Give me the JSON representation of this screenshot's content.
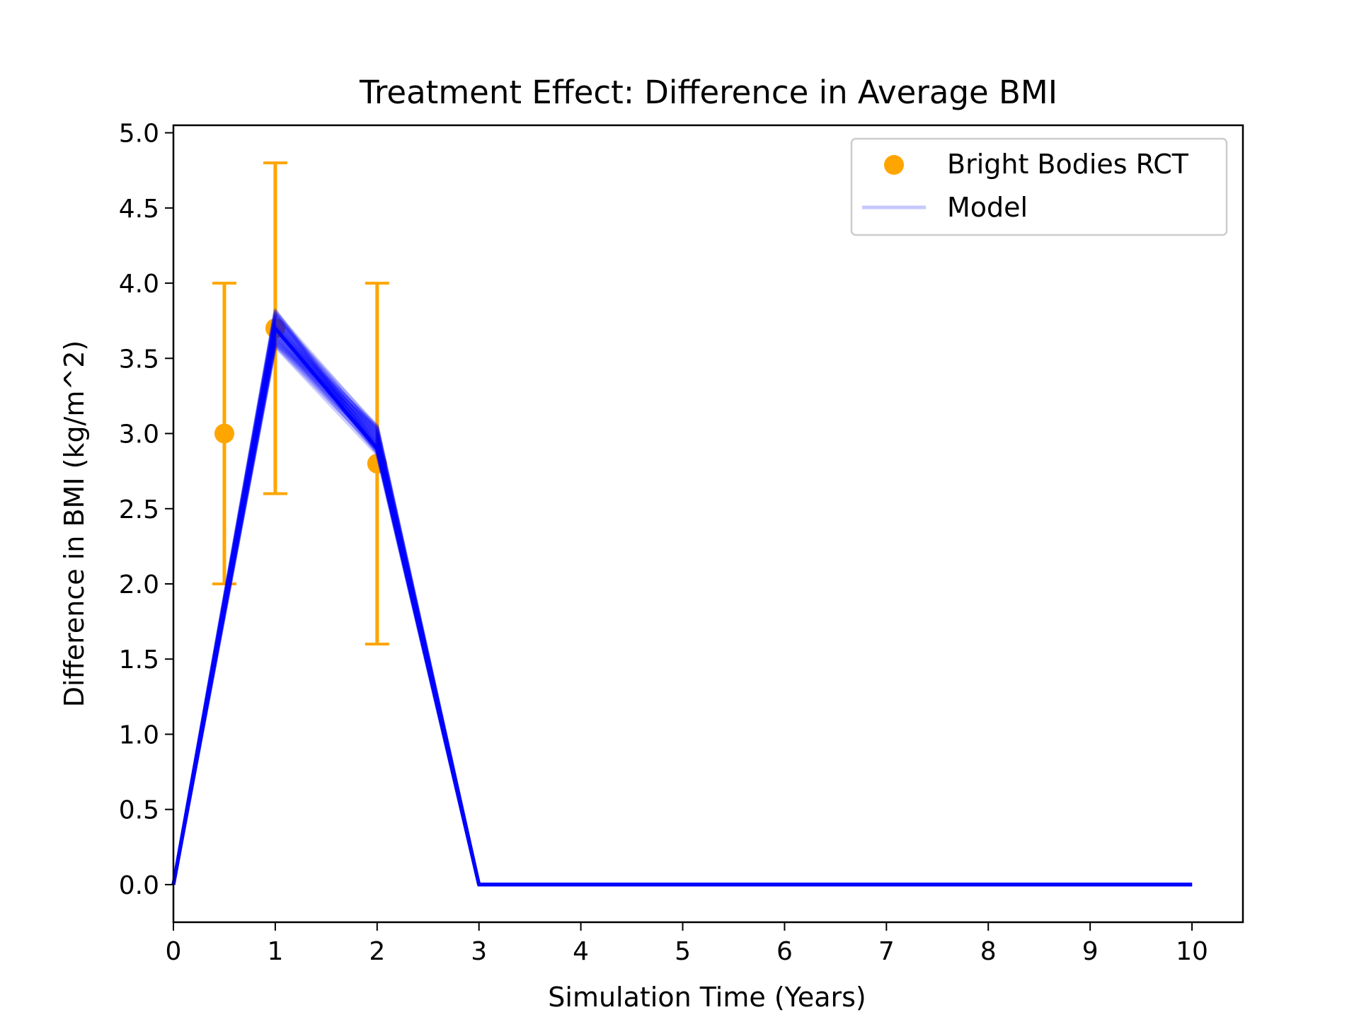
{
  "chart_data": {
    "type": "line",
    "title": "Treatment Effect: Difference in Average BMI",
    "xlabel": "Simulation Time (Years)",
    "ylabel": "Difference in BMI (kg/m^2)",
    "xlim": [
      0,
      10.5
    ],
    "ylim": [
      -0.25,
      5.05
    ],
    "x_ticks": [
      "0",
      "1",
      "2",
      "3",
      "4",
      "5",
      "6",
      "7",
      "8",
      "9",
      "10"
    ],
    "y_ticks": [
      "0.0",
      "0.5",
      "1.0",
      "1.5",
      "2.0",
      "2.5",
      "3.0",
      "3.5",
      "4.0",
      "4.5",
      "5.0"
    ],
    "grid": false,
    "legend_position": "top-right",
    "legend": [
      {
        "label": "Bright Bodies RCT",
        "marker": "dot",
        "color": "#ffa500"
      },
      {
        "label": "Model",
        "marker": "line",
        "color": "#0000ff"
      }
    ],
    "observed": {
      "name": "Bright Bodies RCT",
      "color": "#ffa500",
      "points": [
        {
          "x": 0.5,
          "y": 3.0,
          "ylow": 2.0,
          "yhigh": 4.0
        },
        {
          "x": 1.0,
          "y": 3.7,
          "ylow": 2.6,
          "yhigh": 4.8
        },
        {
          "x": 2.0,
          "y": 2.8,
          "ylow": 1.6,
          "yhigh": 4.0
        }
      ]
    },
    "model": {
      "name": "Model",
      "color": "#0000ff",
      "x": [
        0,
        1,
        2,
        3,
        4,
        5,
        6,
        7,
        8,
        9,
        10
      ],
      "y": [
        0.0,
        3.7,
        2.9,
        0.0,
        0.0,
        0.0,
        0.0,
        0.0,
        0.0,
        0.0,
        0.0
      ],
      "spread_at_x1": [
        3.58,
        3.82
      ],
      "spread_at_x2": [
        2.8,
        3.05
      ]
    }
  }
}
